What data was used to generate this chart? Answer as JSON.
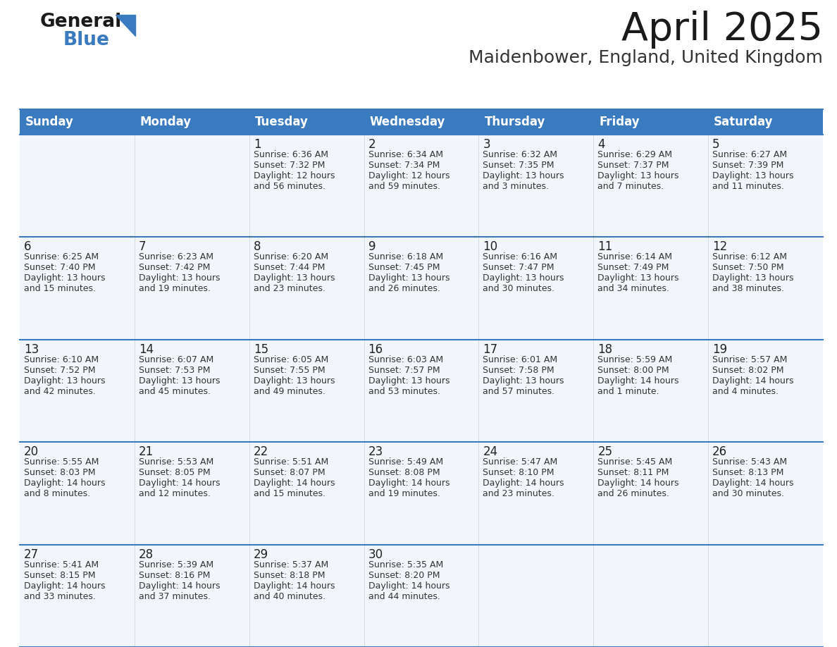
{
  "title": "April 2025",
  "subtitle": "Maidenbower, England, United Kingdom",
  "header_bg": "#3a7abf",
  "header_text": "#ffffff",
  "cell_bg": "#f2f6fb",
  "cell_bg_empty": "#f2f6fb",
  "border_color": "#3a7abf",
  "separator_color": "#3a7abf",
  "day_headers": [
    "Sunday",
    "Monday",
    "Tuesday",
    "Wednesday",
    "Thursday",
    "Friday",
    "Saturday"
  ],
  "title_fontsize": 40,
  "subtitle_fontsize": 18,
  "header_fontsize": 12,
  "day_num_fontsize": 12,
  "cell_text_fontsize": 9,
  "weeks": [
    [
      {
        "day": "",
        "sunrise": "",
        "sunset": "",
        "daylight": ""
      },
      {
        "day": "",
        "sunrise": "",
        "sunset": "",
        "daylight": ""
      },
      {
        "day": "1",
        "sunrise": "Sunrise: 6:36 AM",
        "sunset": "Sunset: 7:32 PM",
        "daylight": "Daylight: 12 hours\nand 56 minutes."
      },
      {
        "day": "2",
        "sunrise": "Sunrise: 6:34 AM",
        "sunset": "Sunset: 7:34 PM",
        "daylight": "Daylight: 12 hours\nand 59 minutes."
      },
      {
        "day": "3",
        "sunrise": "Sunrise: 6:32 AM",
        "sunset": "Sunset: 7:35 PM",
        "daylight": "Daylight: 13 hours\nand 3 minutes."
      },
      {
        "day": "4",
        "sunrise": "Sunrise: 6:29 AM",
        "sunset": "Sunset: 7:37 PM",
        "daylight": "Daylight: 13 hours\nand 7 minutes."
      },
      {
        "day": "5",
        "sunrise": "Sunrise: 6:27 AM",
        "sunset": "Sunset: 7:39 PM",
        "daylight": "Daylight: 13 hours\nand 11 minutes."
      }
    ],
    [
      {
        "day": "6",
        "sunrise": "Sunrise: 6:25 AM",
        "sunset": "Sunset: 7:40 PM",
        "daylight": "Daylight: 13 hours\nand 15 minutes."
      },
      {
        "day": "7",
        "sunrise": "Sunrise: 6:23 AM",
        "sunset": "Sunset: 7:42 PM",
        "daylight": "Daylight: 13 hours\nand 19 minutes."
      },
      {
        "day": "8",
        "sunrise": "Sunrise: 6:20 AM",
        "sunset": "Sunset: 7:44 PM",
        "daylight": "Daylight: 13 hours\nand 23 minutes."
      },
      {
        "day": "9",
        "sunrise": "Sunrise: 6:18 AM",
        "sunset": "Sunset: 7:45 PM",
        "daylight": "Daylight: 13 hours\nand 26 minutes."
      },
      {
        "day": "10",
        "sunrise": "Sunrise: 6:16 AM",
        "sunset": "Sunset: 7:47 PM",
        "daylight": "Daylight: 13 hours\nand 30 minutes."
      },
      {
        "day": "11",
        "sunrise": "Sunrise: 6:14 AM",
        "sunset": "Sunset: 7:49 PM",
        "daylight": "Daylight: 13 hours\nand 34 minutes."
      },
      {
        "day": "12",
        "sunrise": "Sunrise: 6:12 AM",
        "sunset": "Sunset: 7:50 PM",
        "daylight": "Daylight: 13 hours\nand 38 minutes."
      }
    ],
    [
      {
        "day": "13",
        "sunrise": "Sunrise: 6:10 AM",
        "sunset": "Sunset: 7:52 PM",
        "daylight": "Daylight: 13 hours\nand 42 minutes."
      },
      {
        "day": "14",
        "sunrise": "Sunrise: 6:07 AM",
        "sunset": "Sunset: 7:53 PM",
        "daylight": "Daylight: 13 hours\nand 45 minutes."
      },
      {
        "day": "15",
        "sunrise": "Sunrise: 6:05 AM",
        "sunset": "Sunset: 7:55 PM",
        "daylight": "Daylight: 13 hours\nand 49 minutes."
      },
      {
        "day": "16",
        "sunrise": "Sunrise: 6:03 AM",
        "sunset": "Sunset: 7:57 PM",
        "daylight": "Daylight: 13 hours\nand 53 minutes."
      },
      {
        "day": "17",
        "sunrise": "Sunrise: 6:01 AM",
        "sunset": "Sunset: 7:58 PM",
        "daylight": "Daylight: 13 hours\nand 57 minutes."
      },
      {
        "day": "18",
        "sunrise": "Sunrise: 5:59 AM",
        "sunset": "Sunset: 8:00 PM",
        "daylight": "Daylight: 14 hours\nand 1 minute."
      },
      {
        "day": "19",
        "sunrise": "Sunrise: 5:57 AM",
        "sunset": "Sunset: 8:02 PM",
        "daylight": "Daylight: 14 hours\nand 4 minutes."
      }
    ],
    [
      {
        "day": "20",
        "sunrise": "Sunrise: 5:55 AM",
        "sunset": "Sunset: 8:03 PM",
        "daylight": "Daylight: 14 hours\nand 8 minutes."
      },
      {
        "day": "21",
        "sunrise": "Sunrise: 5:53 AM",
        "sunset": "Sunset: 8:05 PM",
        "daylight": "Daylight: 14 hours\nand 12 minutes."
      },
      {
        "day": "22",
        "sunrise": "Sunrise: 5:51 AM",
        "sunset": "Sunset: 8:07 PM",
        "daylight": "Daylight: 14 hours\nand 15 minutes."
      },
      {
        "day": "23",
        "sunrise": "Sunrise: 5:49 AM",
        "sunset": "Sunset: 8:08 PM",
        "daylight": "Daylight: 14 hours\nand 19 minutes."
      },
      {
        "day": "24",
        "sunrise": "Sunrise: 5:47 AM",
        "sunset": "Sunset: 8:10 PM",
        "daylight": "Daylight: 14 hours\nand 23 minutes."
      },
      {
        "day": "25",
        "sunrise": "Sunrise: 5:45 AM",
        "sunset": "Sunset: 8:11 PM",
        "daylight": "Daylight: 14 hours\nand 26 minutes."
      },
      {
        "day": "26",
        "sunrise": "Sunrise: 5:43 AM",
        "sunset": "Sunset: 8:13 PM",
        "daylight": "Daylight: 14 hours\nand 30 minutes."
      }
    ],
    [
      {
        "day": "27",
        "sunrise": "Sunrise: 5:41 AM",
        "sunset": "Sunset: 8:15 PM",
        "daylight": "Daylight: 14 hours\nand 33 minutes."
      },
      {
        "day": "28",
        "sunrise": "Sunrise: 5:39 AM",
        "sunset": "Sunset: 8:16 PM",
        "daylight": "Daylight: 14 hours\nand 37 minutes."
      },
      {
        "day": "29",
        "sunrise": "Sunrise: 5:37 AM",
        "sunset": "Sunset: 8:18 PM",
        "daylight": "Daylight: 14 hours\nand 40 minutes."
      },
      {
        "day": "30",
        "sunrise": "Sunrise: 5:35 AM",
        "sunset": "Sunset: 8:20 PM",
        "daylight": "Daylight: 14 hours\nand 44 minutes."
      },
      {
        "day": "",
        "sunrise": "",
        "sunset": "",
        "daylight": ""
      },
      {
        "day": "",
        "sunrise": "",
        "sunset": "",
        "daylight": ""
      },
      {
        "day": "",
        "sunrise": "",
        "sunset": "",
        "daylight": ""
      }
    ]
  ]
}
